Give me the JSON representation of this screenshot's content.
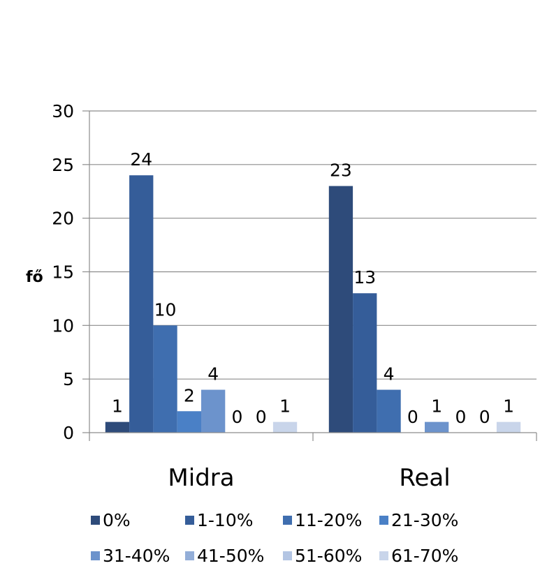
{
  "chart_data": {
    "type": "bar",
    "title": "",
    "xlabel": "",
    "ylabel": "fő",
    "ylim": [
      0,
      30
    ],
    "yticks": [
      0,
      5,
      10,
      15,
      20,
      25,
      30
    ],
    "grid": true,
    "legend_position": "bottom",
    "categories": [
      "Midra",
      "Real"
    ],
    "series": [
      {
        "name": "0%",
        "color": "#2e4b7a",
        "values": [
          1,
          23
        ]
      },
      {
        "name": "1-10%",
        "color": "#355d99",
        "values": [
          24,
          13
        ]
      },
      {
        "name": "11-20%",
        "color": "#3f6eaf",
        "values": [
          10,
          4
        ]
      },
      {
        "name": "21-30%",
        "color": "#4a80c6",
        "values": [
          2,
          0
        ]
      },
      {
        "name": "31-40%",
        "color": "#6c93cc",
        "values": [
          4,
          1
        ]
      },
      {
        "name": "41-50%",
        "color": "#93aed8",
        "values": [
          0,
          0
        ]
      },
      {
        "name": "51-60%",
        "color": "#b3c5e3",
        "values": [
          0,
          0
        ]
      },
      {
        "name": "61-70%",
        "color": "#c9d5ea",
        "values": [
          1,
          1
        ]
      }
    ]
  }
}
